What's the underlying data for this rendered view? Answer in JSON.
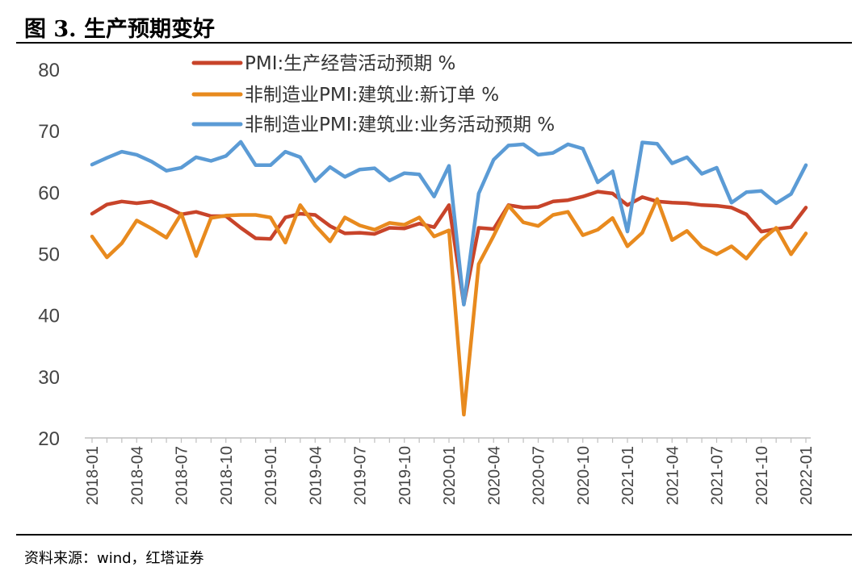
{
  "title": "图 3. 生产预期变好",
  "source": "资料来源：wind，红塔证券",
  "chart_data": {
    "type": "line",
    "title": "图 3. 生产预期变好",
    "xlabel": "",
    "ylabel": "",
    "ylim": [
      20,
      80
    ],
    "yticks": [
      20,
      30,
      40,
      50,
      60,
      70,
      80
    ],
    "legend_position": "top-center",
    "grid": false,
    "x": [
      "2018-01",
      "2018-02",
      "2018-03",
      "2018-04",
      "2018-05",
      "2018-06",
      "2018-07",
      "2018-08",
      "2018-09",
      "2018-10",
      "2018-11",
      "2018-12",
      "2019-01",
      "2019-02",
      "2019-03",
      "2019-04",
      "2019-05",
      "2019-06",
      "2019-07",
      "2019-08",
      "2019-09",
      "2019-10",
      "2019-11",
      "2019-12",
      "2020-01",
      "2020-02",
      "2020-03",
      "2020-04",
      "2020-05",
      "2020-06",
      "2020-07",
      "2020-08",
      "2020-09",
      "2020-10",
      "2020-11",
      "2020-12",
      "2021-01",
      "2021-02",
      "2021-03",
      "2021-04",
      "2021-05",
      "2021-06",
      "2021-07",
      "2021-08",
      "2021-09",
      "2021-10",
      "2021-11",
      "2021-12",
      "2022-01"
    ],
    "xtick_labels": [
      "2018-01",
      "2018-04",
      "2018-07",
      "2018-10",
      "2019-01",
      "2019-04",
      "2019-07",
      "2019-10",
      "2020-01",
      "2020-04",
      "2020-07",
      "2020-10",
      "2021-01",
      "2021-04",
      "2021-07",
      "2021-10",
      "2022-01"
    ],
    "series": [
      {
        "name": "PMI:生产经营活动预期 %",
        "color": "#C8442A",
        "values": [
          56.5,
          58.0,
          58.5,
          58.2,
          58.5,
          57.6,
          56.4,
          56.8,
          56.1,
          56.1,
          54.2,
          52.5,
          52.4,
          55.9,
          56.5,
          56.3,
          54.5,
          53.3,
          53.4,
          53.2,
          54.2,
          54.1,
          54.9,
          54.3,
          57.9,
          41.8,
          54.2,
          54.0,
          57.9,
          57.5,
          57.6,
          58.5,
          58.7,
          59.3,
          60.1,
          59.8,
          57.9,
          59.2,
          58.5,
          58.3,
          58.2,
          57.9,
          57.8,
          57.5,
          56.4,
          53.6,
          54.0,
          54.3,
          57.5
        ]
      },
      {
        "name": "非制造业PMI:建筑业:新订单 %",
        "color": "#E88A1E",
        "values": [
          52.8,
          49.4,
          51.7,
          55.4,
          54.1,
          52.6,
          56.5,
          49.6,
          55.8,
          56.2,
          56.3,
          56.3,
          55.9,
          51.8,
          57.9,
          54.6,
          52.0,
          55.9,
          54.6,
          53.9,
          55.0,
          54.7,
          55.9,
          52.8,
          53.8,
          23.8,
          48.3,
          52.9,
          57.8,
          55.1,
          54.5,
          56.3,
          56.8,
          53.0,
          53.9,
          55.8,
          51.2,
          53.4,
          58.9,
          52.2,
          53.7,
          51.1,
          49.9,
          51.2,
          49.2,
          52.2,
          54.2,
          49.9,
          53.3
        ]
      },
      {
        "name": "非制造业PMI:建筑业:业务活动预期 %",
        "color": "#5B9BD5",
        "values": [
          64.5,
          65.6,
          66.6,
          66.1,
          65.0,
          63.5,
          64.0,
          65.7,
          65.1,
          65.9,
          68.2,
          64.4,
          64.4,
          66.6,
          65.7,
          61.8,
          64.1,
          62.5,
          63.7,
          63.9,
          61.9,
          63.1,
          62.9,
          59.3,
          64.3,
          41.7,
          59.8,
          65.3,
          67.6,
          67.8,
          66.1,
          66.4,
          67.8,
          67.1,
          61.6,
          63.4,
          53.6,
          68.1,
          67.9,
          64.7,
          65.7,
          63.0,
          64.0,
          58.3,
          60.0,
          60.2,
          58.2,
          59.7,
          64.4
        ]
      }
    ]
  }
}
